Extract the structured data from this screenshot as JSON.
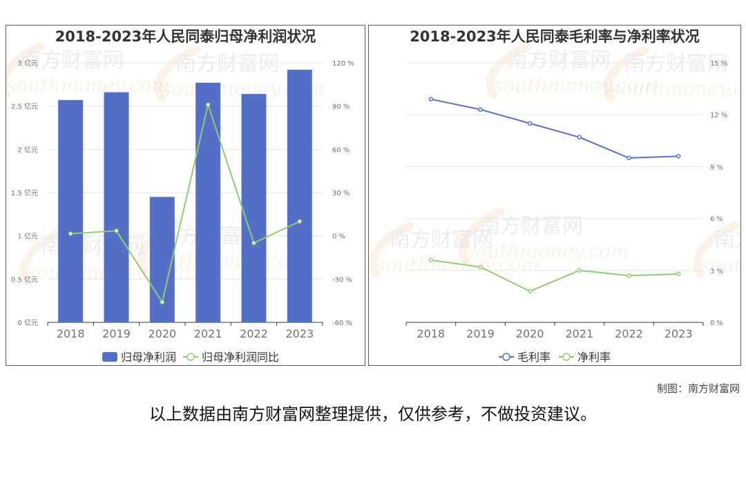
{
  "colors": {
    "bar": "#5470c6",
    "net": "#91cc75",
    "grid": "#e6e6e6",
    "axis": "#333333",
    "tick": "#6e7079"
  },
  "chart_data": [
    {
      "type": "bar",
      "title": "2018-2023年人民同泰归母净利润状况",
      "categories": [
        "2018",
        "2019",
        "2020",
        "2021",
        "2022",
        "2023"
      ],
      "y_left": {
        "ticks": [
          "0 亿元",
          "0.5 亿元",
          "1 亿元",
          "1.5 亿元",
          "2 亿元",
          "2.5 亿元",
          "3 亿元"
        ],
        "ylim": [
          0,
          3
        ]
      },
      "y_right": {
        "ticks": [
          "-60 %",
          "-30 %",
          "0 %",
          "30 %",
          "60 %",
          "90 %",
          "120 %"
        ],
        "ylim": [
          -60,
          120
        ]
      },
      "series": [
        {
          "name": "归母净利润",
          "kind": "bar",
          "axis": "left",
          "values": [
            2.57,
            2.66,
            1.45,
            2.77,
            2.64,
            2.92
          ]
        },
        {
          "name": "归母净利润同比",
          "kind": "line",
          "axis": "right",
          "values": [
            1.5,
            3.5,
            -46,
            91,
            -5,
            10
          ]
        }
      ],
      "legend": "bottom"
    },
    {
      "type": "line",
      "title": "2018-2023年人民同泰毛利率与净利率状况",
      "categories": [
        "2018",
        "2019",
        "2020",
        "2021",
        "2022",
        "2023"
      ],
      "y_right": {
        "ticks": [
          "0 %",
          "3 %",
          "6 %",
          "9 %",
          "12 %",
          "15 %"
        ],
        "ylim": [
          0,
          15
        ]
      },
      "series": [
        {
          "name": "毛利率",
          "color": "#5470c6",
          "values": [
            12.9,
            12.3,
            11.5,
            10.7,
            9.5,
            9.6
          ]
        },
        {
          "name": "净利率",
          "color": "#91cc75",
          "values": [
            3.6,
            3.2,
            1.8,
            3.0,
            2.7,
            2.8
          ]
        }
      ],
      "legend": "bottom"
    }
  ],
  "watermark": {
    "cn": "南方财富网",
    "en": "southmoney.com"
  },
  "credit": "制图：南方财富网",
  "disclaimer": "以上数据由南方财富网整理提供，仅供参考，不做投资建议。"
}
